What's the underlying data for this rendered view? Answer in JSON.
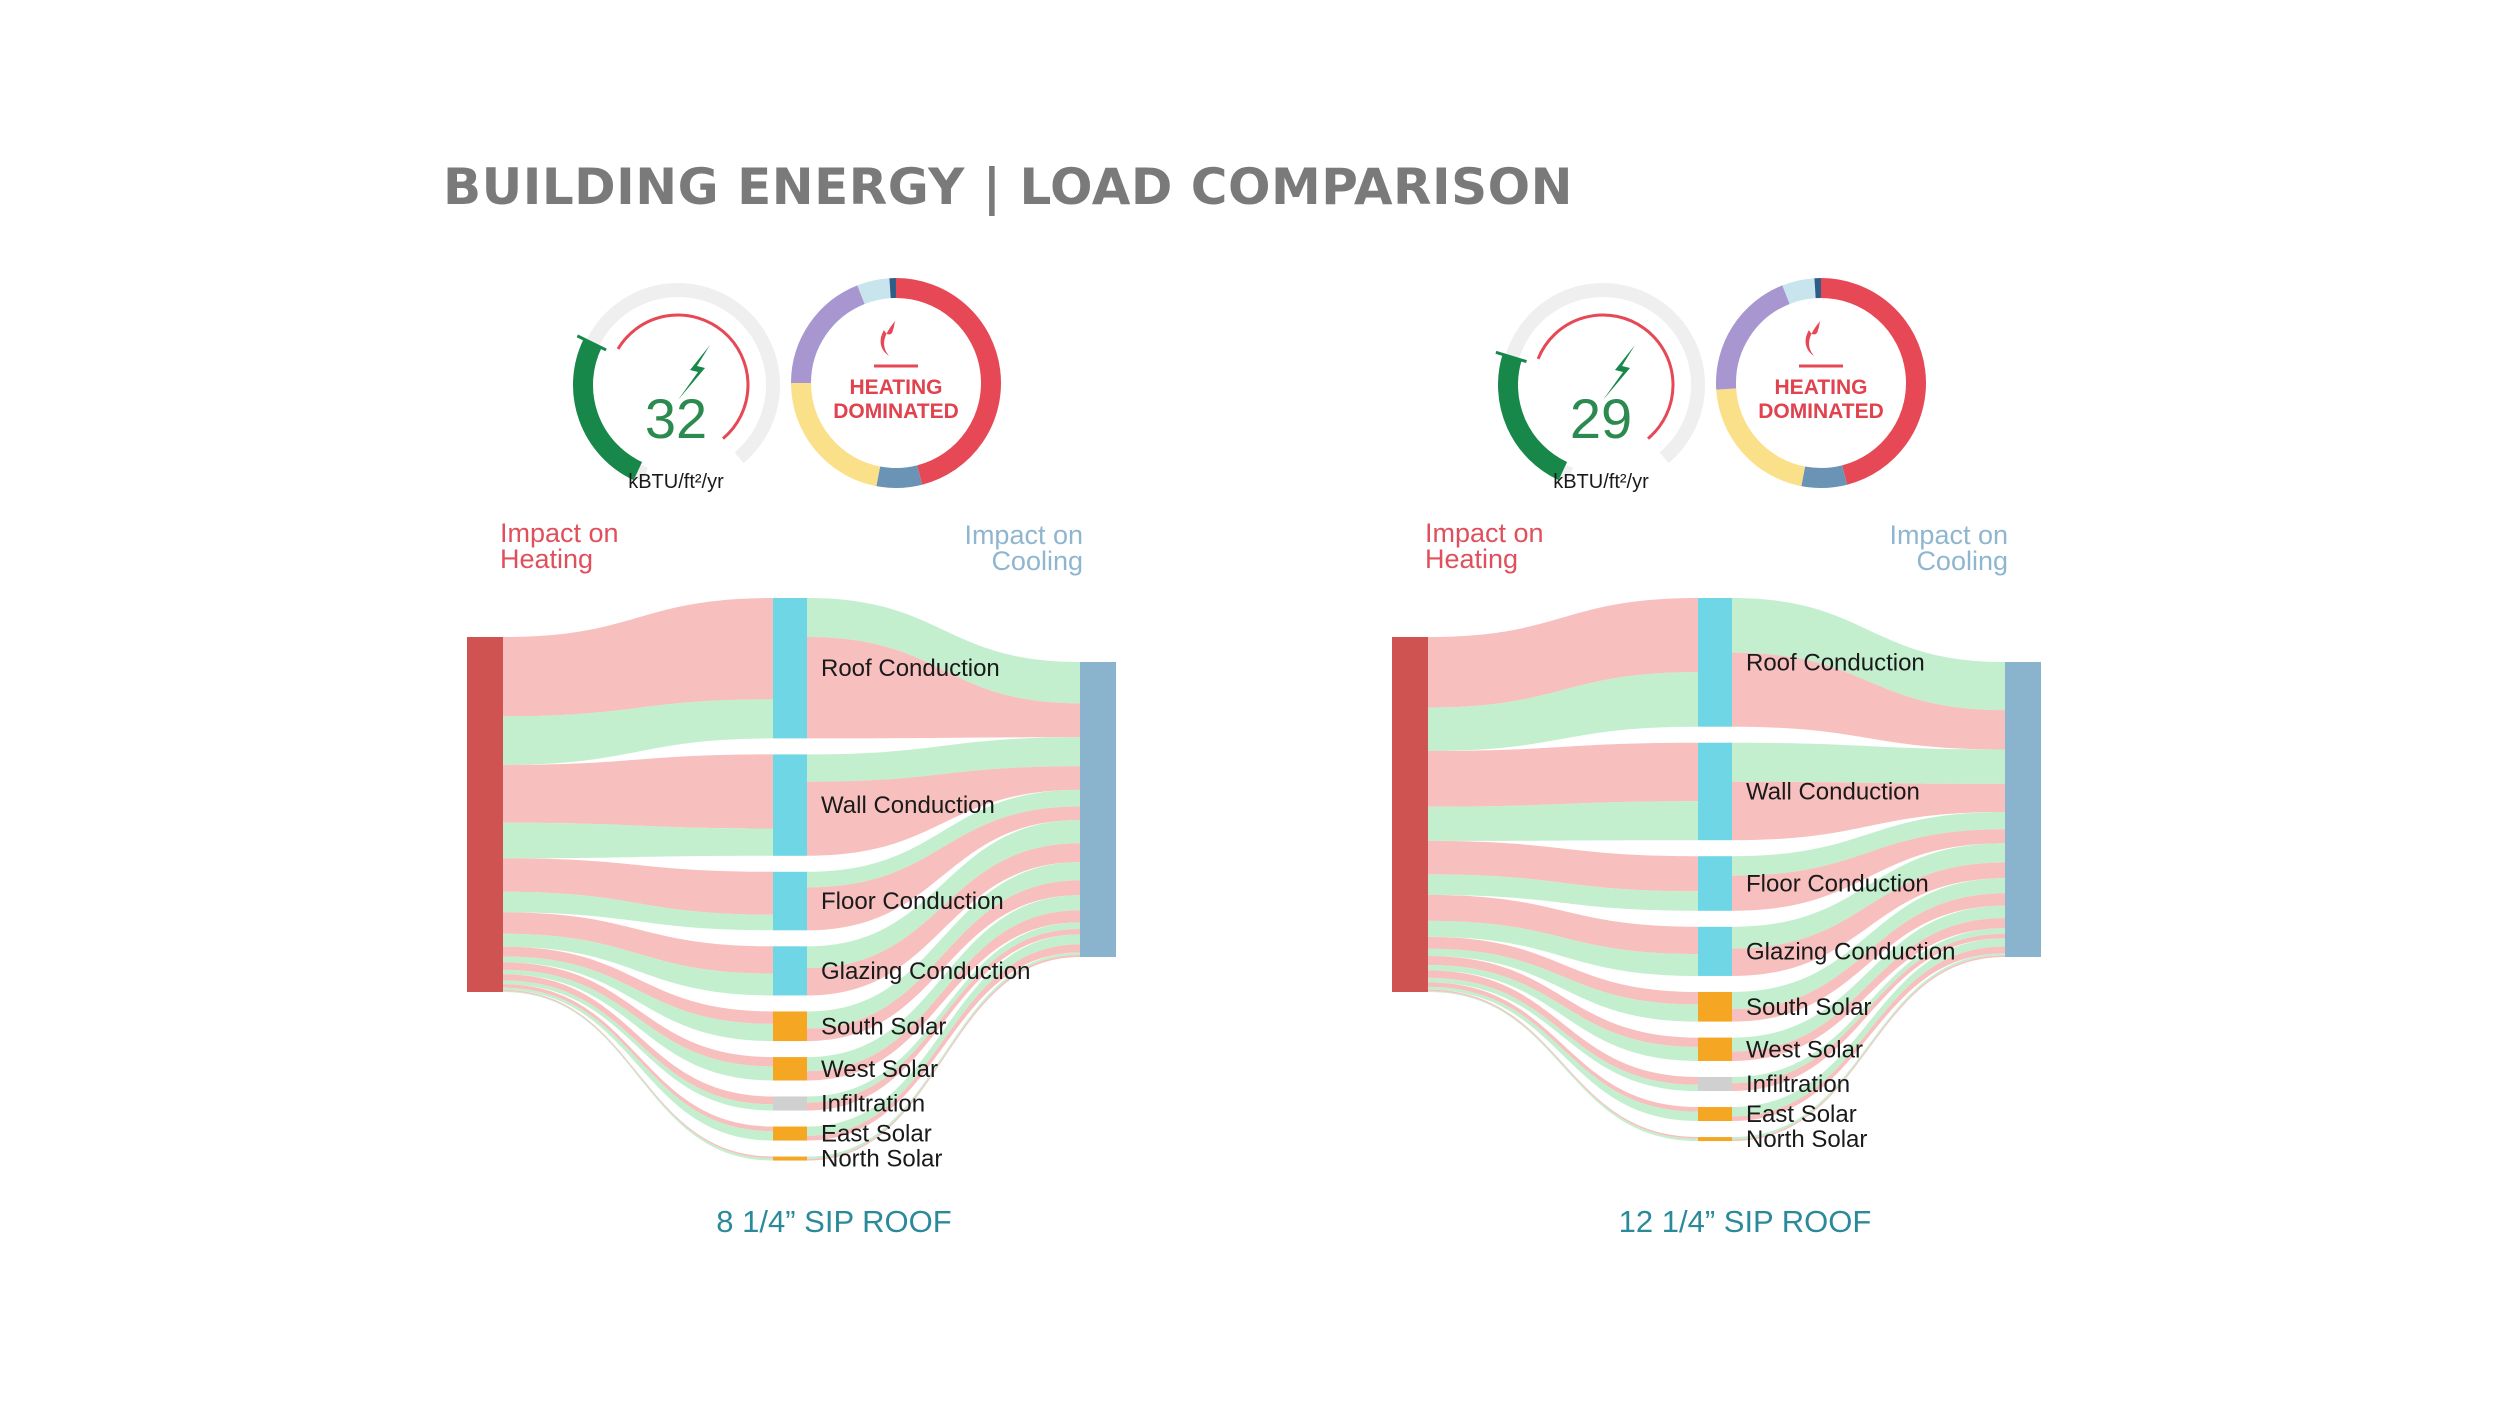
{
  "title": "BUILDING ENERGY | LOAD COMPARISON",
  "colors": {
    "heating_bar": "#cf5351",
    "cooling_bar": "#8ab3ce",
    "conduction_node": "#6fd6e6",
    "solar_node": "#f5a623",
    "infiltration_node": "#d0d0d0",
    "heating_flow": "#f7b4b4",
    "cooling_flow": "#b9ecc7",
    "gauge_green": "#17874a",
    "donut_red": "#e74856",
    "donut_purple": "#a796cf",
    "donut_yellow": "#fbe08a",
    "donut_steel": "#6a93b6",
    "donut_light": "#c8e5ee",
    "donut_navy": "#2e5e88"
  },
  "chart_data": [
    {
      "type": "sankey",
      "caption": "8 1/4” SIP ROOF",
      "eui": {
        "value": "32",
        "unit": "kBTU/ft²/yr",
        "fraction": 0.32
      },
      "load_ring": {
        "badge": [
          "HEATING",
          "DOMINATED"
        ],
        "segments": [
          {
            "name": "heating",
            "share": 0.46
          },
          {
            "name": "steel",
            "share": 0.07
          },
          {
            "name": "yellow",
            "share": 0.22
          },
          {
            "name": "purple",
            "share": 0.19
          },
          {
            "name": "light",
            "share": 0.05
          },
          {
            "name": "navy",
            "share": 0.01
          }
        ]
      },
      "left_label": "Impact on Heating",
      "right_label": "Impact on Cooling",
      "nodes": [
        {
          "name": "Roof Conduction",
          "kind": "conduction",
          "heating": 13.0,
          "cooling": 5.0
        },
        {
          "name": "Wall Conduction",
          "kind": "conduction",
          "heating": 9.5,
          "cooling": 3.5
        },
        {
          "name": "Floor Conduction",
          "kind": "conduction",
          "heating": 5.5,
          "cooling": 2.0
        },
        {
          "name": "Glazing Conduction",
          "kind": "conduction",
          "heating": 3.5,
          "cooling": 2.8
        },
        {
          "name": "South Solar",
          "kind": "solar",
          "heating": 1.6,
          "cooling": 2.2
        },
        {
          "name": "West Solar",
          "kind": "solar",
          "heating": 1.2,
          "cooling": 1.8
        },
        {
          "name": "Infiltration",
          "kind": "infiltration",
          "heating": 1.0,
          "cooling": 0.8
        },
        {
          "name": "East Solar",
          "kind": "solar",
          "heating": 0.6,
          "cooling": 1.2
        },
        {
          "name": "North Solar",
          "kind": "solar",
          "heating": 0.2,
          "cooling": 0.3
        }
      ]
    },
    {
      "type": "sankey",
      "caption": "12 1/4” SIP ROOF",
      "eui": {
        "value": "29",
        "unit": "kBTU/ft²/yr",
        "fraction": 0.29
      },
      "load_ring": {
        "badge": [
          "HEATING",
          "DOMINATED"
        ],
        "segments": [
          {
            "name": "heating",
            "share": 0.46
          },
          {
            "name": "steel",
            "share": 0.07
          },
          {
            "name": "yellow",
            "share": 0.21
          },
          {
            "name": "purple",
            "share": 0.2
          },
          {
            "name": "light",
            "share": 0.05
          },
          {
            "name": "navy",
            "share": 0.01
          }
        ]
      },
      "left_label": "Impact on Heating",
      "right_label": "Impact on Cooling",
      "nodes": [
        {
          "name": "Roof Conduction",
          "kind": "conduction",
          "heating": 9.5,
          "cooling": 7.0
        },
        {
          "name": "Wall Conduction",
          "kind": "conduction",
          "heating": 7.5,
          "cooling": 5.0
        },
        {
          "name": "Floor Conduction",
          "kind": "conduction",
          "heating": 4.5,
          "cooling": 2.5
        },
        {
          "name": "Glazing Conduction",
          "kind": "conduction",
          "heating": 3.5,
          "cooling": 2.8
        },
        {
          "name": "South Solar",
          "kind": "solar",
          "heating": 1.6,
          "cooling": 2.2
        },
        {
          "name": "West Solar",
          "kind": "solar",
          "heating": 1.2,
          "cooling": 1.8
        },
        {
          "name": "Infiltration",
          "kind": "infiltration",
          "heating": 1.0,
          "cooling": 0.8
        },
        {
          "name": "East Solar",
          "kind": "solar",
          "heating": 0.6,
          "cooling": 1.2
        },
        {
          "name": "North Solar",
          "kind": "solar",
          "heating": 0.2,
          "cooling": 0.3
        }
      ]
    }
  ]
}
